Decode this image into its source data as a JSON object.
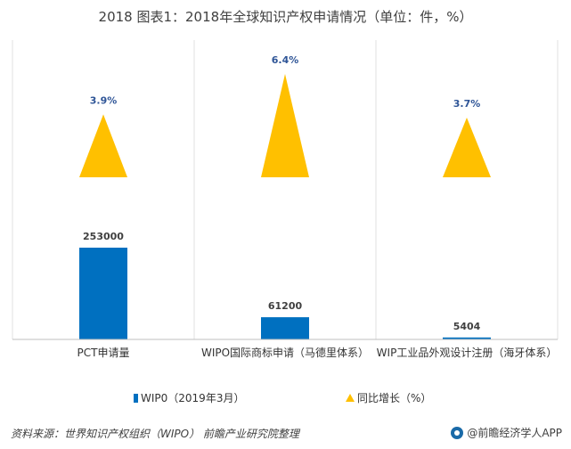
{
  "title": "2018 图表1：2018年全球知识产权申请情况（单位：件，%）",
  "chart_data": {
    "type": "bar",
    "categories": [
      "PCT申请量",
      "WIPO国际商标申请（马德里体系）",
      "WIP工业品外观设计注册（海牙体系）"
    ],
    "series": [
      {
        "name": "WIP0（2019年3月）",
        "type": "bar",
        "values": [
          253000,
          61200,
          5404
        ],
        "labels": [
          "253000",
          "61200",
          "5404"
        ],
        "color": "#0070c0"
      },
      {
        "name": "同比增长（%）",
        "type": "triangle",
        "values": [
          3.9,
          6.4,
          3.7
        ],
        "labels": [
          "3.9%",
          "6.4%",
          "3.7%"
        ],
        "color": "#ffc000"
      }
    ],
    "legend": "bottom",
    "grid": false
  },
  "legend": {
    "bar_label": "WIP0（2019年3月）",
    "tri_label": "同比增长（%）"
  },
  "source": "资料来源：世界知识产权组织（WIPO）  前瞻产业研究院整理",
  "brand": "@前瞻经济学人APP"
}
